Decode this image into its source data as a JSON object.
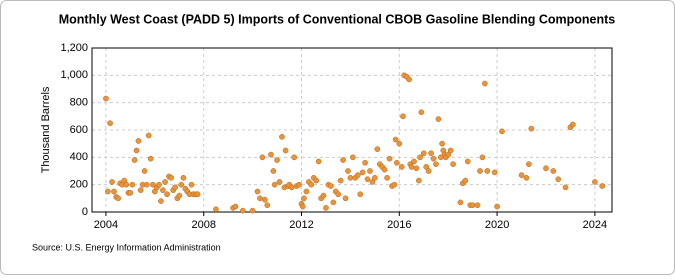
{
  "chart_data": {
    "type": "scatter",
    "title": "Monthly West Coast (PADD 5) Imports of Conventional CBOB Gasoline Blending Components",
    "y_label": "Thousand Barrels",
    "source": "Source: U.S. Energy Information Administration",
    "color": "#e8943a",
    "x": [
      2004.0,
      2004.08,
      2004.17,
      2004.25,
      2004.33,
      2004.42,
      2004.5,
      2004.58,
      2004.67,
      2004.75,
      2004.83,
      2004.92,
      2005.0,
      2005.08,
      2005.17,
      2005.25,
      2005.33,
      2005.42,
      2005.5,
      2005.58,
      2005.67,
      2005.75,
      2005.83,
      2005.92,
      2006.0,
      2006.08,
      2006.17,
      2006.25,
      2006.33,
      2006.42,
      2006.5,
      2006.58,
      2006.67,
      2006.75,
      2006.83,
      2006.92,
      2007.0,
      2007.08,
      2007.17,
      2007.25,
      2007.33,
      2007.42,
      2007.5,
      2007.58,
      2007.67,
      2007.75,
      2008.5,
      2009.2,
      2009.3,
      2009.6,
      2010.0,
      2010.2,
      2010.3,
      2010.4,
      2010.5,
      2010.6,
      2010.75,
      2010.85,
      2010.9,
      2011.0,
      2011.1,
      2011.2,
      2011.3,
      2011.35,
      2011.45,
      2011.5,
      2011.6,
      2011.7,
      2011.8,
      2011.9,
      2012.0,
      2012.05,
      2012.1,
      2012.2,
      2012.3,
      2012.4,
      2012.5,
      2012.6,
      2012.7,
      2012.8,
      2012.9,
      2013.0,
      2013.1,
      2013.2,
      2013.3,
      2013.4,
      2013.5,
      2013.6,
      2013.7,
      2013.8,
      2013.9,
      2014.0,
      2014.1,
      2014.2,
      2014.3,
      2014.4,
      2014.5,
      2014.6,
      2014.7,
      2014.8,
      2014.9,
      2015.0,
      2015.1,
      2015.2,
      2015.3,
      2015.4,
      2015.5,
      2015.6,
      2015.7,
      2015.8,
      2015.85,
      2015.9,
      2016.0,
      2016.1,
      2016.15,
      2016.2,
      2016.3,
      2016.4,
      2016.45,
      2016.5,
      2016.6,
      2016.7,
      2016.8,
      2016.85,
      2016.9,
      2017.0,
      2017.1,
      2017.2,
      2017.3,
      2017.4,
      2017.5,
      2017.6,
      2017.7,
      2017.75,
      2017.8,
      2017.85,
      2017.9,
      2018.0,
      2018.1,
      2018.2,
      2018.5,
      2018.6,
      2018.7,
      2018.8,
      2018.9,
      2019.0,
      2019.2,
      2019.3,
      2019.4,
      2019.5,
      2019.6,
      2019.9,
      2020.0,
      2020.2,
      2021.0,
      2021.2,
      2021.3,
      2021.4,
      2022.0,
      2022.3,
      2022.5,
      2022.8,
      2023.0,
      2023.1,
      2024.0,
      2024.3
    ],
    "values": [
      830,
      150,
      650,
      220,
      150,
      110,
      100,
      210,
      200,
      230,
      200,
      140,
      140,
      200,
      380,
      450,
      520,
      160,
      200,
      300,
      200,
      560,
      390,
      200,
      150,
      180,
      200,
      80,
      160,
      220,
      130,
      260,
      250,
      160,
      180,
      100,
      120,
      200,
      250,
      170,
      150,
      130,
      200,
      130,
      130,
      130,
      20,
      30,
      40,
      10,
      10,
      150,
      100,
      400,
      90,
      50,
      420,
      300,
      200,
      380,
      220,
      550,
      180,
      450,
      190,
      200,
      180,
      400,
      190,
      200,
      60,
      40,
      100,
      150,
      220,
      200,
      250,
      230,
      370,
      100,
      120,
      30,
      200,
      190,
      70,
      150,
      130,
      230,
      380,
      100,
      300,
      250,
      400,
      250,
      270,
      130,
      290,
      360,
      240,
      300,
      220,
      250,
      460,
      350,
      330,
      310,
      250,
      390,
      190,
      200,
      530,
      360,
      500,
      330,
      700,
      1000,
      990,
      970,
      350,
      330,
      370,
      320,
      230,
      400,
      730,
      430,
      330,
      300,
      430,
      390,
      350,
      680,
      400,
      500,
      450,
      420,
      400,
      420,
      450,
      350,
      70,
      210,
      230,
      370,
      50,
      50,
      50,
      300,
      400,
      940,
      300,
      290,
      40,
      590,
      270,
      250,
      350,
      610,
      320,
      300,
      240,
      180,
      620,
      640,
      220,
      190
    ],
    "xlim": [
      2003.43,
      2024.7
    ],
    "ylim": [
      0,
      1200
    ],
    "xticks": [
      2004,
      2008,
      2012,
      2016,
      2020,
      2024
    ],
    "yticks": [
      0,
      200,
      400,
      600,
      800,
      {
        "value": 1000,
        "label": "1,000"
      },
      {
        "value": 1200,
        "label": "1,200"
      }
    ],
    "grid": true
  }
}
